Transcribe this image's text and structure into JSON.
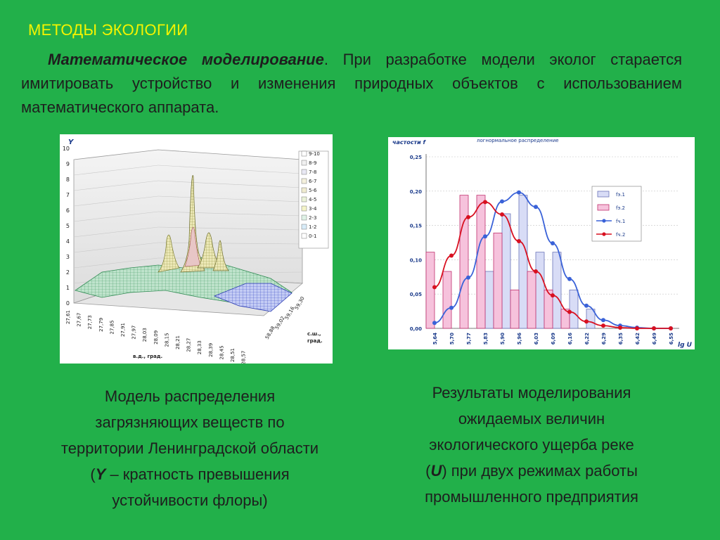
{
  "heading": "МЕТОДЫ ЭКОЛОГИИ",
  "intro": {
    "term": "Математическое моделирование",
    "text": ". При разработке модели эколог старается имитировать устройство и изменения природных объектов с использованием математического аппарата."
  },
  "figure_3d": {
    "y_axis_label": "Y",
    "y_ticks": [
      "0",
      "1",
      "2",
      "3",
      "4",
      "5",
      "6",
      "7",
      "8",
      "9",
      "10"
    ],
    "x_ticks": [
      "27,61",
      "27,67",
      "27,73",
      "27,79",
      "27,85",
      "27,91",
      "27,97",
      "28,03",
      "28,09",
      "28,15",
      "28,21",
      "28,27",
      "28,33",
      "28,39",
      "28,45",
      "28,51",
      "28,57"
    ],
    "x_axis_label": "в.д., град.",
    "z_ticks": [
      "59,30",
      "59,16",
      "59,02",
      "58,88"
    ],
    "z_axis_label_1": "с.ш.,",
    "z_axis_label_2": "град.",
    "legend": [
      "9-10",
      "8-9",
      "7-8",
      "6-7",
      "5-6",
      "4-5",
      "3-4",
      "2-3",
      "1-2",
      "0-1"
    ]
  },
  "chart_data": {
    "type": "bar",
    "title": "логнормальное распределение",
    "ylabel": "частости f",
    "xlabel": "lg U",
    "categories": [
      "5,64",
      "5,70",
      "5,77",
      "5,83",
      "5,90",
      "5,96",
      "6,03",
      "6,09",
      "6,16",
      "6,22",
      "6,29",
      "6,35",
      "6,42",
      "6,49",
      "6,55"
    ],
    "ylim": [
      0,
      0.25
    ],
    "y_ticks": [
      "0,00",
      "0,05",
      "0,10",
      "0,15",
      "0,20",
      "0,25"
    ],
    "series": [
      {
        "name": "fэ.1",
        "kind": "bar",
        "color": "#d8dcf6",
        "stroke": "#6a74b8",
        "values": [
          0,
          0,
          0,
          0.083,
          0.167,
          0.194,
          0.111,
          0.111,
          0.056,
          0.028,
          0,
          0,
          0,
          0,
          0
        ]
      },
      {
        "name": "fэ.2",
        "kind": "bar",
        "color": "#f6c2dc",
        "stroke": "#c0306e",
        "values": [
          0.111,
          0.083,
          0.194,
          0.194,
          0.139,
          0.056,
          0.083,
          0.056,
          0.028,
          0,
          0,
          0,
          0,
          0,
          0
        ]
      },
      {
        "name": "fч.1",
        "kind": "line",
        "color": "#3a62d8",
        "values": [
          0.008,
          0.03,
          0.074,
          0.134,
          0.185,
          0.198,
          0.177,
          0.124,
          0.072,
          0.033,
          0.012,
          0.004,
          0.001,
          0.0,
          0.0
        ]
      },
      {
        "name": "fч.2",
        "kind": "line",
        "color": "#d81020",
        "values": [
          0.06,
          0.106,
          0.162,
          0.184,
          0.166,
          0.127,
          0.083,
          0.048,
          0.024,
          0.01,
          0.004,
          0.001,
          0.0,
          0.0,
          0.0
        ]
      }
    ]
  },
  "caption_left": {
    "line1": "Модель распределения",
    "line2": "загрязняющих веществ по",
    "line3": "территории Ленинградской области",
    "line4_open": "(",
    "line4_var": "Y",
    "line4_rest": " – кратность превышения",
    "line5": "устойчивости флоры)"
  },
  "caption_right": {
    "line1": "Результаты моделирования",
    "line2": "ожидаемых величин",
    "line3": "экологического ущерба реке",
    "line4_open": "(",
    "line4_var": "U",
    "line4_rest": ") при двух режимах работы",
    "line5": "промышленного предприятия"
  }
}
